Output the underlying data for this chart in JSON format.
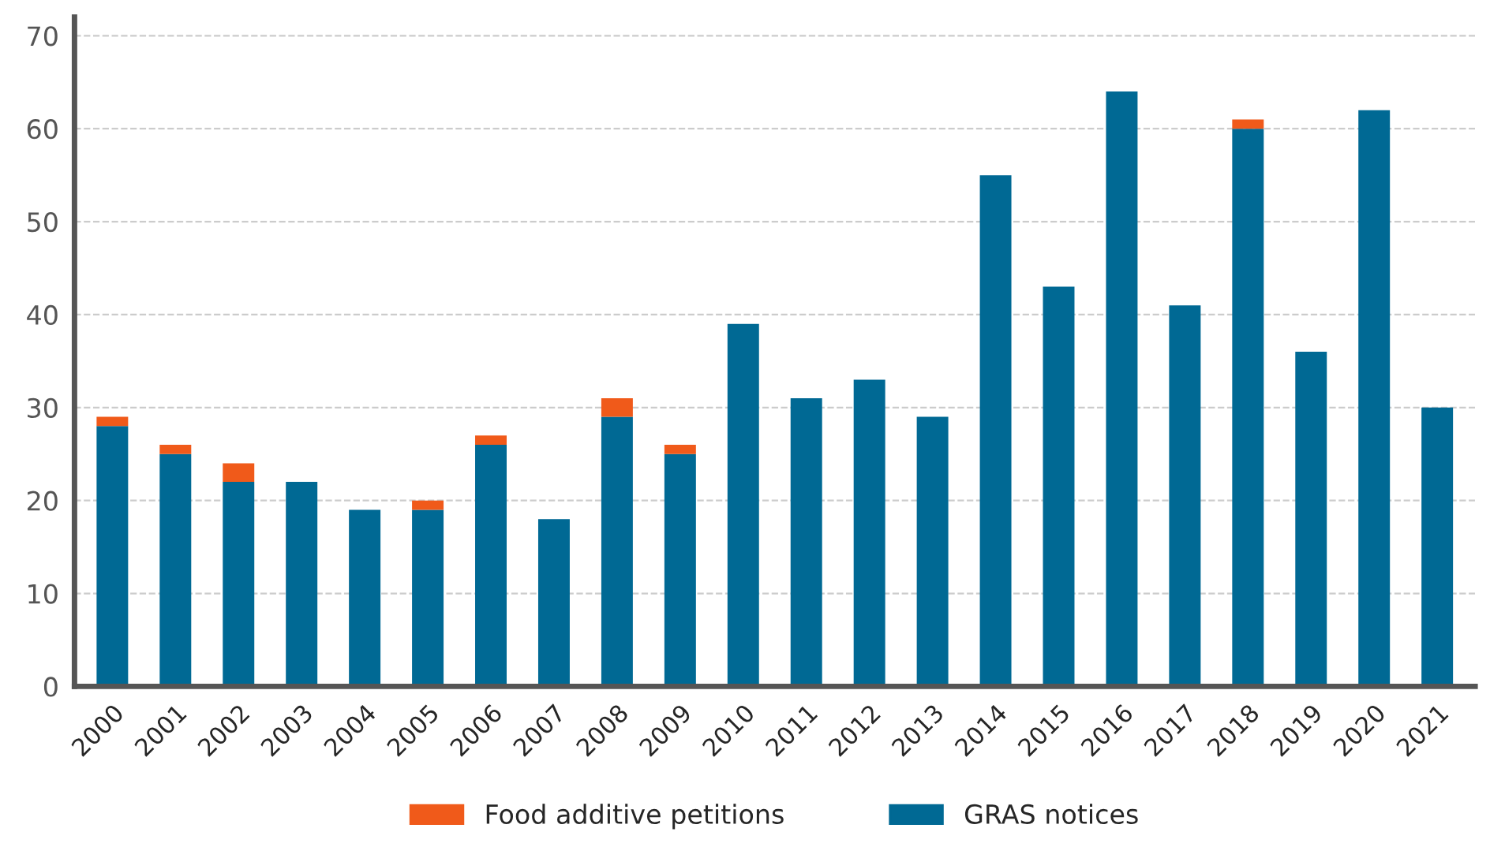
{
  "chart_data": {
    "type": "bar",
    "stacked": true,
    "categories": [
      "2000",
      "2001",
      "2002",
      "2003",
      "2004",
      "2005",
      "2006",
      "2007",
      "2008",
      "2009",
      "2010",
      "2011",
      "2012",
      "2013",
      "2014",
      "2015",
      "2016",
      "2017",
      "2018",
      "2019",
      "2020",
      "2021"
    ],
    "series": [
      {
        "name": "GRAS notices",
        "color": "#006994",
        "values": [
          28,
          25,
          22,
          22,
          19,
          19,
          26,
          18,
          29,
          25,
          39,
          31,
          33,
          29,
          55,
          43,
          64,
          41,
          60,
          36,
          62,
          30
        ]
      },
      {
        "name": "Food additive petitions",
        "color": "#f05a1a",
        "values": [
          1,
          1,
          2,
          0,
          0,
          1,
          1,
          0,
          2,
          1,
          0,
          0,
          0,
          0,
          0,
          0,
          0,
          0,
          1,
          0,
          0,
          0
        ]
      }
    ],
    "ylim": [
      0,
      72
    ],
    "yticks": [
      0,
      10,
      20,
      30,
      40,
      50,
      60,
      70
    ],
    "grid": "y",
    "legend": "bottom"
  }
}
